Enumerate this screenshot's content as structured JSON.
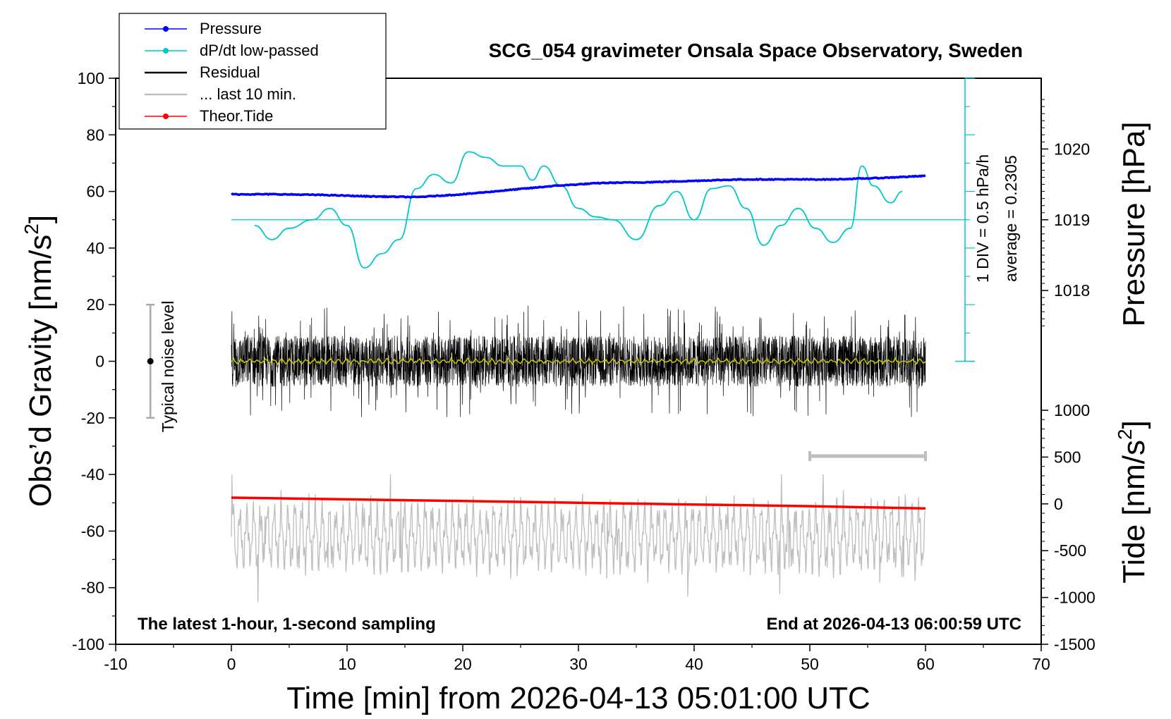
{
  "title": "SCG_054 gravimeter Onsala Space Observatory, Sweden",
  "legend": [
    {
      "label": "Pressure",
      "color": "#0000ff",
      "marker": true
    },
    {
      "label": "dP/dt low-passed",
      "color": "#00c8c8",
      "marker": true
    },
    {
      "label": "Residual",
      "color": "#000000",
      "marker": false
    },
    {
      "label": "... last 10 min.",
      "color": "#bebebe",
      "marker": false
    },
    {
      "label": "Theor.Tide",
      "color": "#ff0000",
      "marker": true
    }
  ],
  "annotations": {
    "bottom_left": "The latest 1-hour, 1-second sampling",
    "bottom_right": "End at 2026-04-13 06:00:59 UTC",
    "noise": "Typical noise level",
    "div_scale": "1 DIV = 0.5 hPa/h",
    "average": "average = 0.2305"
  },
  "axes": {
    "x_label": "Time [min] from 2026-04-13 05:01:00 UTC",
    "y_left_label": "Obs’d Gravity [nm/s",
    "y_left_sup": "2",
    "y_left_close": "]",
    "y_right_top_label": "Pressure [hPa]",
    "y_right_bottom_label": "Tide [nm/s",
    "y_right_bottom_sup": "2",
    "y_right_bottom_close": "]",
    "x_ticks": [
      "-10",
      "0",
      "10",
      "20",
      "30",
      "40",
      "50",
      "60",
      "70"
    ],
    "y_left_ticks": [
      "100",
      "80",
      "60",
      "40",
      "20",
      "0",
      "-20",
      "-40",
      "-60",
      "-80",
      "-100"
    ],
    "pressure_ticks": [
      "1020",
      "1019",
      "1018"
    ],
    "tide_ticks": [
      "1000",
      "500",
      "0",
      "-500",
      "-1000",
      "-1500"
    ]
  },
  "chart_data": {
    "type": "line",
    "title": "SCG_054 gravimeter Onsala Space Observatory, Sweden",
    "xlabel": "Time [min] from 2026-04-13 05:01:00 UTC",
    "ylabel": "Obs’d Gravity [nm/s2]",
    "xlim": [
      -10,
      70
    ],
    "ylim": [
      -100,
      100
    ],
    "grid": false,
    "legend_position": "top-left",
    "pressure_axis": {
      "label": "Pressure [hPa]",
      "ticks": [
        1020,
        1019,
        1018
      ]
    },
    "tide_axis": {
      "label": "Tide [nm/s2]",
      "lim": [
        -1500,
        1500
      ],
      "ticks": [
        1000,
        500,
        0,
        -500,
        -1000,
        -1500
      ]
    },
    "noise_bar": {
      "x": -7,
      "center": 0,
      "half_range": 20
    },
    "dpdt_scale": {
      "div_hPa_per_h": 0.5,
      "average": 0.2305
    },
    "last10_range_min": [
      50,
      60
    ],
    "series": [
      {
        "name": "Pressure",
        "unit": "hPa",
        "color": "#0000ff",
        "x": [
          0,
          4,
          8,
          12,
          16,
          20,
          24,
          28,
          32,
          36,
          40,
          44,
          48,
          52,
          56,
          60
        ],
        "y": [
          1019.36,
          1019.36,
          1019.35,
          1019.33,
          1019.32,
          1019.36,
          1019.42,
          1019.48,
          1019.52,
          1019.53,
          1019.55,
          1019.57,
          1019.57,
          1019.57,
          1019.59,
          1019.62
        ]
      },
      {
        "name": "dP/dt low-passed",
        "unit": "nm/s2 equivalent",
        "color": "#00c8c8",
        "x": [
          2,
          3.5,
          5,
          7,
          8.5,
          10,
          11.5,
          13,
          14.5,
          16,
          17.5,
          19,
          20.5,
          22,
          23.5,
          25,
          26,
          27,
          28.5,
          30,
          31.5,
          33,
          35,
          37,
          38.5,
          40,
          41.5,
          43,
          44.5,
          46,
          47.5,
          49,
          50.5,
          52,
          53.5,
          54.5,
          55.5,
          57,
          58
        ],
        "y": [
          48,
          43,
          47,
          50,
          54,
          48,
          33,
          38,
          43,
          61,
          66,
          63,
          74,
          72,
          69,
          69,
          64,
          69,
          62,
          54,
          51,
          50,
          43,
          55,
          60,
          50,
          61,
          62,
          54,
          41,
          48,
          54,
          47,
          42,
          47,
          69,
          62,
          56,
          60
        ]
      },
      {
        "name": "Residual",
        "unit": "nm/s2",
        "color": "#000000",
        "amplitude": 22,
        "x_range": [
          0,
          60
        ]
      },
      {
        "name": "... last 10 min.",
        "unit": "nm/s2",
        "color": "#bebebe",
        "y_min": -85,
        "y_max": -40,
        "x_range": [
          0,
          60
        ]
      },
      {
        "name": "Theor.Tide",
        "unit": "nm/s2",
        "color": "#ff0000",
        "x": [
          0,
          10,
          20,
          30,
          40,
          50,
          60
        ],
        "y": [
          -48.2,
          -48.8,
          -49.4,
          -50.0,
          -50.6,
          -51.2,
          -52.0
        ]
      }
    ]
  }
}
